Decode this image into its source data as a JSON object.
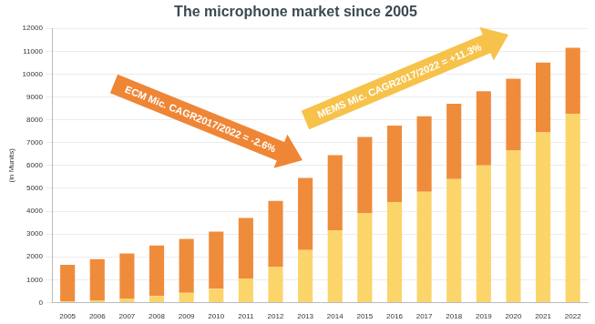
{
  "chart_data": {
    "type": "bar",
    "title": "The microphone market since 2005",
    "y_label": "(in Munits)",
    "categories": [
      "2005",
      "2006",
      "2007",
      "2008",
      "2009",
      "2010",
      "2011",
      "2012",
      "2013",
      "2014",
      "2015",
      "2016",
      "2017",
      "2018",
      "2019",
      "2020",
      "2021",
      "2022"
    ],
    "series": [
      {
        "color": "#fbd56a",
        "values": [
          50,
          100,
          180,
          280,
          420,
          600,
          1050,
          1550,
          2300,
          3150,
          3900,
          4400,
          4850,
          5400,
          6000,
          6650,
          7450,
          8250
        ]
      },
      {
        "color": "#ef8c3c",
        "values": [
          1600,
          1800,
          1970,
          2220,
          2360,
          2500,
          2650,
          2900,
          3150,
          3300,
          3350,
          3350,
          3300,
          3300,
          3250,
          3150,
          3050,
          2900
        ]
      }
    ],
    "stacked": true,
    "ylim": [
      0,
      12000
    ],
    "yticks": [
      0,
      1000,
      2000,
      3000,
      4000,
      5000,
      6000,
      7000,
      8000,
      9000,
      10000,
      11000,
      12000
    ],
    "grid": true,
    "annotations": [
      "ECM Mic. CAGR2017/2022 = -2.6%",
      "MEMS Mic. CAGR2017/2022 = +11.3%"
    ]
  }
}
